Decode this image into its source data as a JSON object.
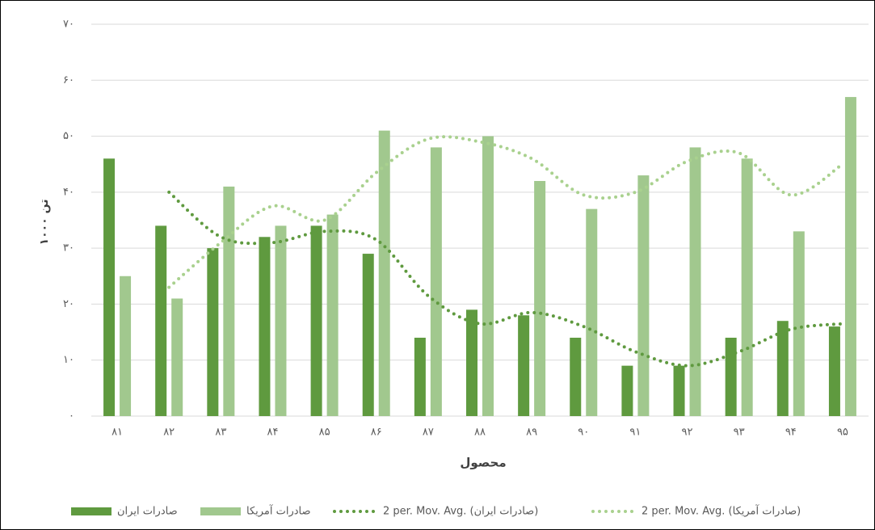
{
  "chart_data": {
    "type": "bar",
    "categories": [
      "۸۱",
      "۸۲",
      "۸۳",
      "۸۴",
      "۸۵",
      "۸۶",
      "۸۷",
      "۸۸",
      "۸۹",
      "۹۰",
      "۹۱",
      "۹۲",
      "۹۳",
      "۹۴",
      "۹۵"
    ],
    "series": [
      {
        "name": "صادرات ایران",
        "type": "bar",
        "color": "#5f9a3f",
        "values": [
          46,
          34,
          30,
          32,
          34,
          29,
          14,
          19,
          18,
          14,
          9,
          9,
          14,
          17,
          16
        ]
      },
      {
        "name": "صادرات آمریکا",
        "type": "bar",
        "color": "#a1c88e",
        "values": [
          25,
          21,
          41,
          34,
          36,
          51,
          48,
          50,
          42,
          37,
          43,
          48,
          46,
          33,
          57
        ]
      },
      {
        "name": "2 per. Mov. Avg. (صادرات ایران)",
        "type": "line",
        "color": "#5f9a3f",
        "values": [
          null,
          40,
          32,
          31,
          33,
          31.5,
          21.5,
          16.5,
          18.5,
          16,
          11.5,
          9,
          11.5,
          15.5,
          16.5
        ]
      },
      {
        "name": "2 per. Mov. Avg. (صادرات آمریکا)",
        "type": "line",
        "color": "#a9d18e",
        "values": [
          null,
          23,
          31,
          37.5,
          35,
          43.5,
          49.5,
          49,
          46,
          39.5,
          40,
          45.5,
          47,
          39.5,
          45
        ]
      }
    ],
    "xlabel": "محصول",
    "ylabel": "۱۰۰۰ تن",
    "ylim": [
      0,
      70
    ],
    "yticks": [
      {
        "value": 0,
        "label": "۰"
      },
      {
        "value": 10,
        "label": "۱۰"
      },
      {
        "value": 20,
        "label": "۲۰"
      },
      {
        "value": 30,
        "label": "۳۰"
      },
      {
        "value": 40,
        "label": "۴۰"
      },
      {
        "value": 50,
        "label": "۵۰"
      },
      {
        "value": 60,
        "label": "۶۰"
      },
      {
        "value": 70,
        "label": "۷۰"
      }
    ],
    "grid": true,
    "legend": "bottom"
  }
}
